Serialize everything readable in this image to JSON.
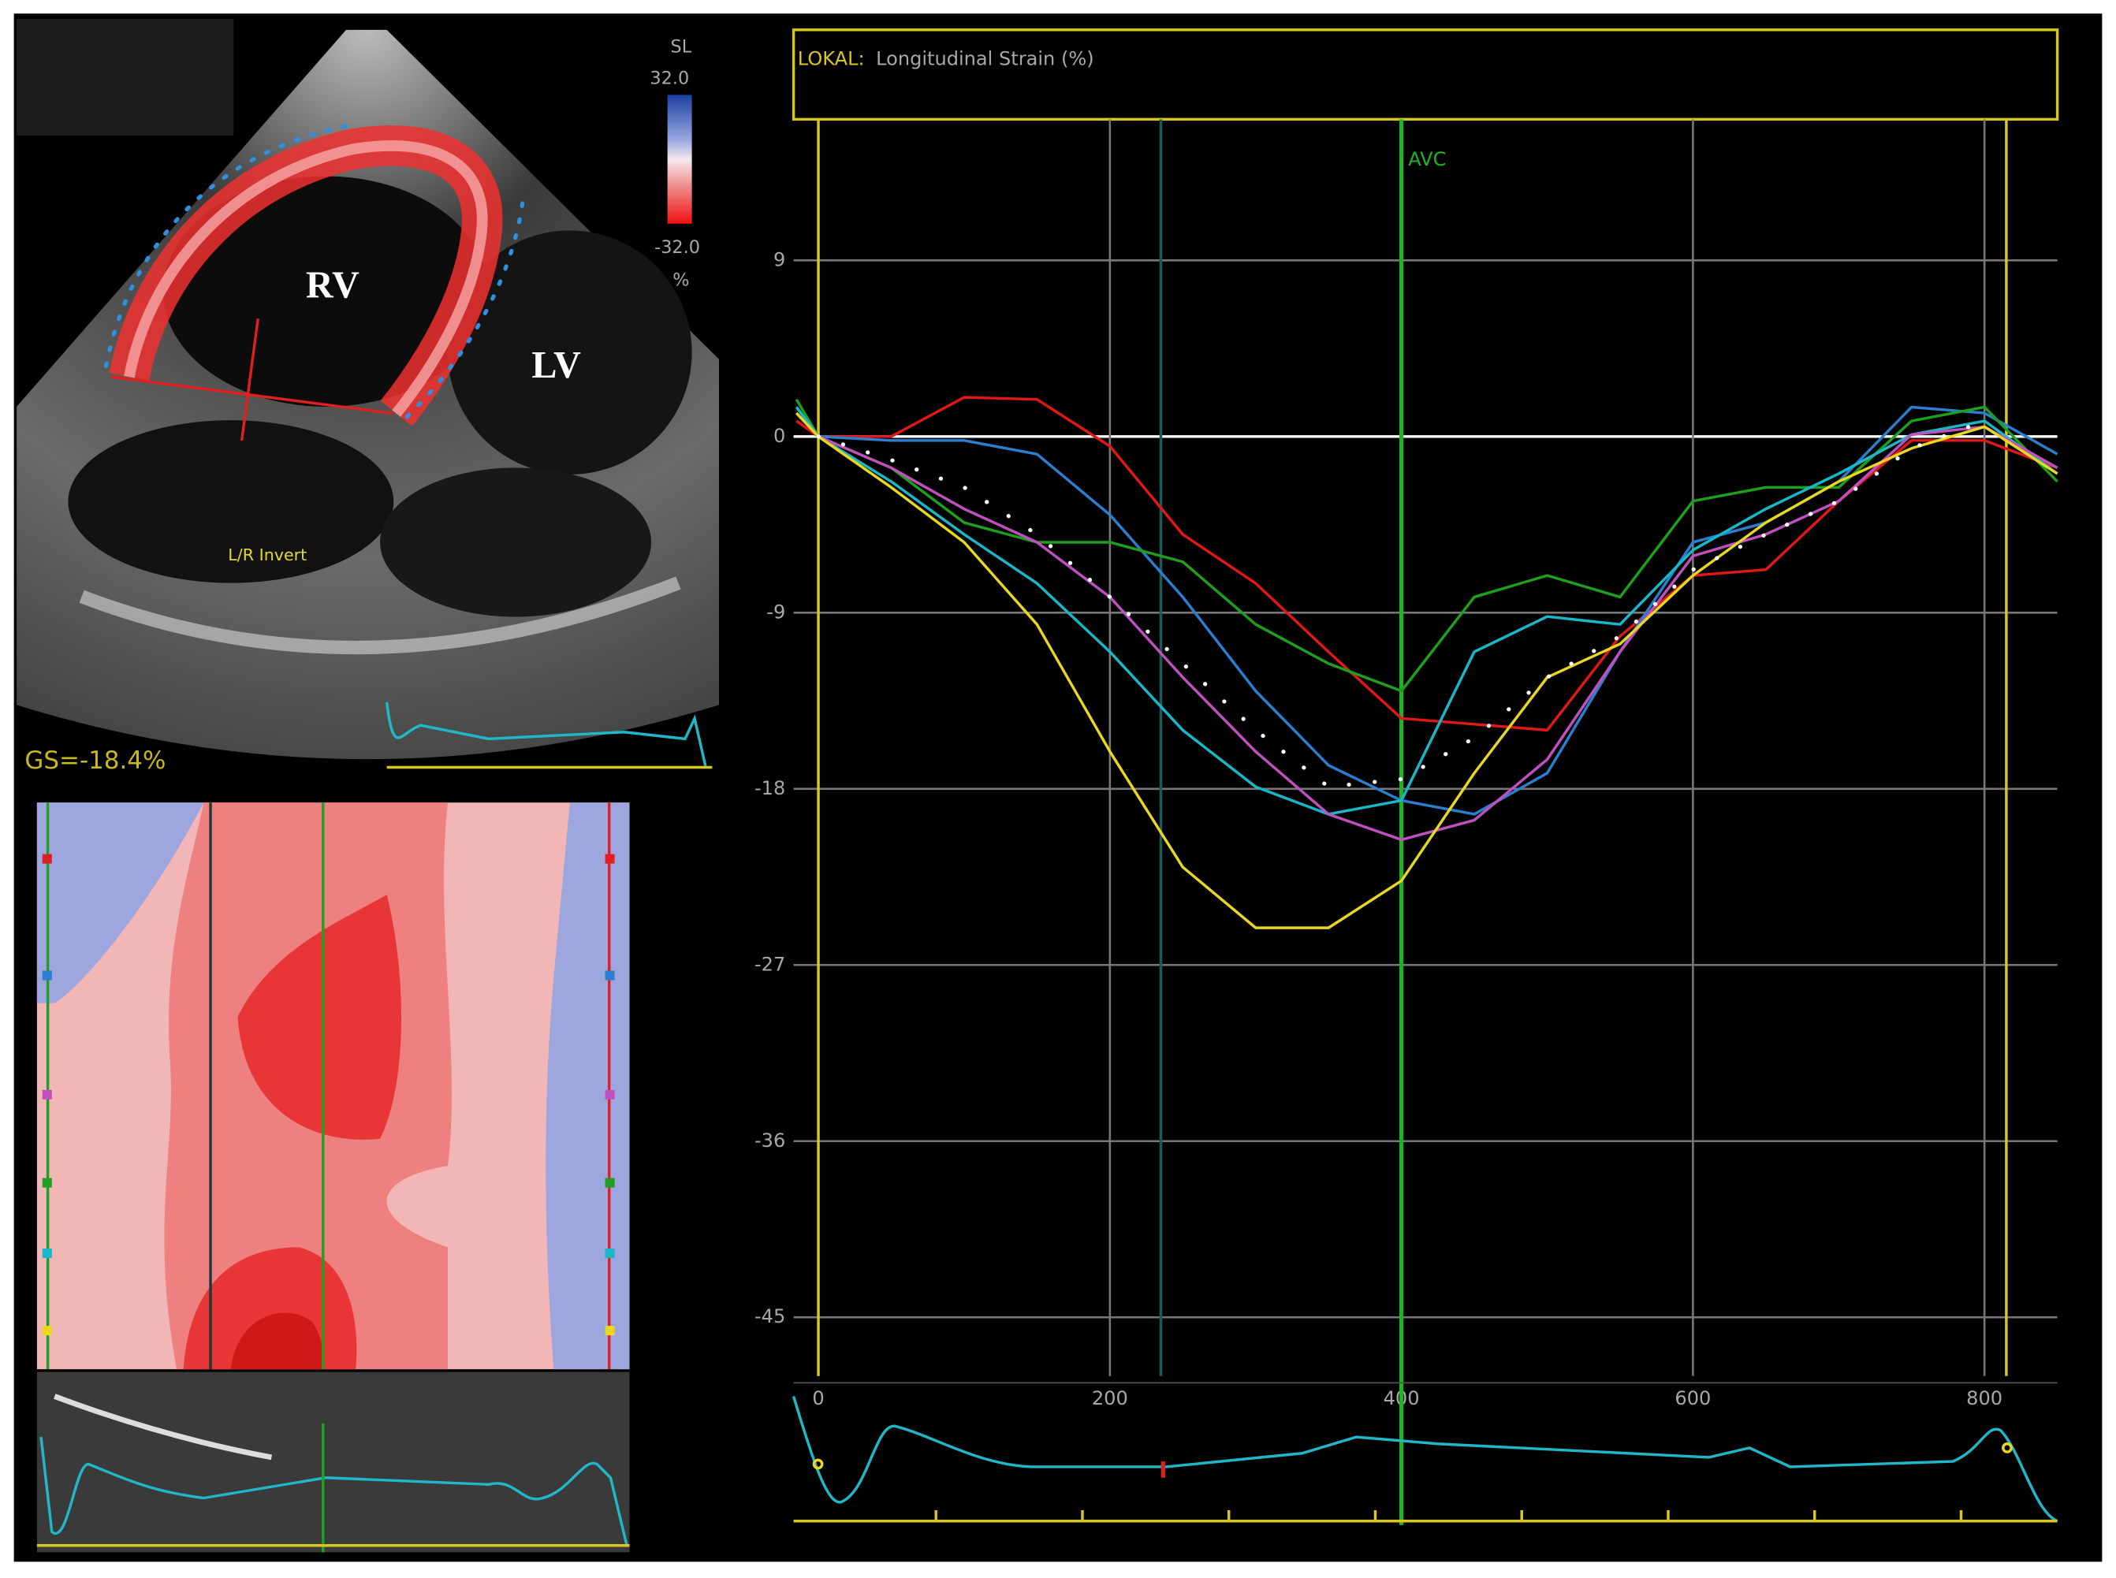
{
  "echo": {
    "scale_label": "SL",
    "scale_max": "32.0",
    "scale_min": "-32.0",
    "scale_unit": "%",
    "label_rv": "RV",
    "label_lv": "LV",
    "orientation": "L/R Invert",
    "global_strain": "GS=-18.4%"
  },
  "chart_data": {
    "type": "line",
    "title_prefix": "LOKAL:",
    "title": "Longitudinal Strain (%)",
    "x": [
      -15,
      0,
      50,
      100,
      150,
      200,
      250,
      300,
      350,
      400,
      450,
      500,
      550,
      600,
      650,
      700,
      750,
      800,
      850
    ],
    "xlim": [
      -17,
      850
    ],
    "xticks": [
      0,
      200,
      400,
      600,
      800
    ],
    "ylim": [
      -48,
      16
    ],
    "yticks": [
      -45,
      -36,
      -27,
      -18,
      -9,
      0,
      9
    ],
    "grid": true,
    "zero_line_color": "#ffffff",
    "series": [
      {
        "color": "#e01818",
        "values": [
          0.8,
          0,
          0,
          2.0,
          1.9,
          -0.5,
          -5.0,
          -7.5,
          -11,
          -14.4,
          -14.7,
          -15,
          -10.2,
          -7.1,
          -6.8,
          -3.3,
          -0.2,
          -0.2,
          -1.6
        ]
      },
      {
        "color": "#2a7fd0",
        "values": [
          1.5,
          0,
          -0.2,
          -0.2,
          -0.9,
          -4,
          -8.2,
          -13,
          -16.8,
          -18.6,
          -19.3,
          -17.2,
          -11,
          -5.4,
          -4.4,
          -2.3,
          1.5,
          1.2,
          -0.9
        ]
      },
      {
        "color": "#1ea01e",
        "values": [
          1.9,
          0,
          -1.6,
          -4.4,
          -5.4,
          -5.4,
          -6.4,
          -9.6,
          -11.6,
          -13,
          -8.2,
          -7.1,
          -8.2,
          -3.3,
          -2.6,
          -2.6,
          0.8,
          1.5,
          -2.3
        ]
      },
      {
        "color": "#18b8c8",
        "values": [
          1.5,
          0,
          -2.3,
          -5,
          -7.5,
          -11,
          -15,
          -17.9,
          -19.3,
          -18.6,
          -11,
          -9.2,
          -9.6,
          -5.8,
          -3.7,
          -1.9,
          0.1,
          0.8,
          -1.9
        ]
      },
      {
        "color": "#c050c0",
        "values": [
          1.2,
          0,
          -1.6,
          -3.7,
          -5.4,
          -8.2,
          -12.3,
          -16.1,
          -19.3,
          -20.6,
          -19.6,
          -16.5,
          -11,
          -6.1,
          -5,
          -3.3,
          0.1,
          0.5,
          -1.6
        ]
      },
      {
        "color": "#e8d820",
        "values": [
          1.2,
          0,
          -2.6,
          -5.4,
          -9.6,
          -16.1,
          -22,
          -25.1,
          -25.1,
          -22.7,
          -17.2,
          -12.3,
          -10.6,
          -7.1,
          -4.4,
          -2.3,
          -0.6,
          0.5,
          -1.9
        ]
      },
      {
        "color": "#ffffff",
        "dotted": true,
        "values": [
          null,
          0,
          -1.2,
          -2.6,
          -5,
          -8.2,
          -11.6,
          -15,
          -17.9,
          -17.5,
          -15.4,
          -12.3,
          -10.2,
          -6.8,
          -5,
          -3.3,
          -0.6,
          0.8,
          null
        ]
      }
    ],
    "event_lines": [
      {
        "x": 0,
        "color": "#d8c81e"
      },
      {
        "x": 815,
        "color": "#d8c81e"
      },
      {
        "x": 235,
        "color": "#1e5a5a"
      },
      {
        "x": 400,
        "color": "#1fb51f",
        "label": "AVC"
      }
    ]
  }
}
